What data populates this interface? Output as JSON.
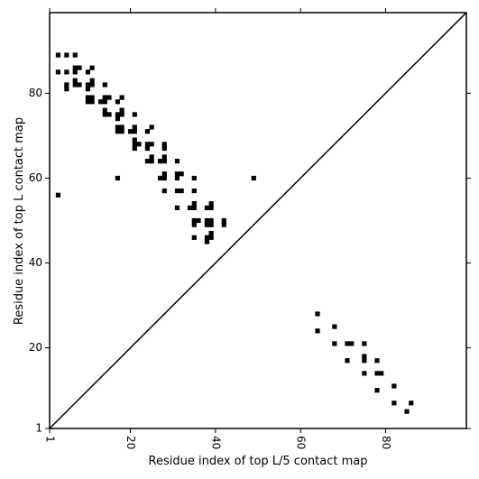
{
  "chart_data": {
    "type": "scatter",
    "title": "",
    "xlabel": "Residue index of top L/5 contact map",
    "ylabel": "Residue index of top L contact map",
    "xlim": [
      1,
      99
    ],
    "ylim": [
      1,
      99
    ],
    "xticks": [
      1,
      20,
      40,
      60,
      80
    ],
    "yticks": [
      1,
      20,
      40,
      60,
      80
    ],
    "x_tick_rotation": -90,
    "grid": false,
    "diagonal_line": true,
    "marker": "square",
    "marker_color": "#000000",
    "series": [
      {
        "points": [
          [
            3,
            89
          ],
          [
            5,
            89
          ],
          [
            7,
            89
          ],
          [
            3,
            85
          ],
          [
            5,
            85
          ],
          [
            7,
            85
          ],
          [
            7,
            86
          ],
          [
            8,
            86
          ],
          [
            10,
            85
          ],
          [
            11,
            86
          ],
          [
            5,
            82
          ],
          [
            5,
            81
          ],
          [
            7,
            83
          ],
          [
            7,
            82
          ],
          [
            8,
            82
          ],
          [
            10,
            82
          ],
          [
            10,
            81
          ],
          [
            11,
            83
          ],
          [
            11,
            82
          ],
          [
            14,
            82
          ],
          [
            10,
            79
          ],
          [
            11,
            79
          ],
          [
            10,
            78
          ],
          [
            11,
            78
          ],
          [
            13,
            78
          ],
          [
            14,
            79
          ],
          [
            15,
            79
          ],
          [
            14,
            78
          ],
          [
            17,
            78
          ],
          [
            18,
            79
          ],
          [
            14,
            76
          ],
          [
            14,
            75
          ],
          [
            15,
            75
          ],
          [
            17,
            75
          ],
          [
            17,
            74
          ],
          [
            18,
            76
          ],
          [
            18,
            75
          ],
          [
            21,
            75
          ],
          [
            17,
            72
          ],
          [
            17,
            71
          ],
          [
            18,
            72
          ],
          [
            18,
            71
          ],
          [
            20,
            71
          ],
          [
            21,
            72
          ],
          [
            21,
            71
          ],
          [
            24,
            71
          ],
          [
            25,
            72
          ],
          [
            21,
            69
          ],
          [
            21,
            68
          ],
          [
            22,
            68
          ],
          [
            21,
            67
          ],
          [
            24,
            68
          ],
          [
            24,
            67
          ],
          [
            25,
            68
          ],
          [
            28,
            68
          ],
          [
            28,
            67
          ],
          [
            24,
            64
          ],
          [
            25,
            65
          ],
          [
            25,
            64
          ],
          [
            27,
            64
          ],
          [
            28,
            65
          ],
          [
            28,
            64
          ],
          [
            31,
            64
          ],
          [
            17,
            60
          ],
          [
            27,
            60
          ],
          [
            28,
            61
          ],
          [
            28,
            60
          ],
          [
            31,
            61
          ],
          [
            31,
            60
          ],
          [
            32,
            61
          ],
          [
            35,
            60
          ],
          [
            49,
            60
          ],
          [
            28,
            57
          ],
          [
            31,
            57
          ],
          [
            32,
            57
          ],
          [
            35,
            57
          ],
          [
            3,
            56
          ],
          [
            31,
            53
          ],
          [
            34,
            53
          ],
          [
            35,
            54
          ],
          [
            35,
            53
          ],
          [
            38,
            53
          ],
          [
            39,
            54
          ],
          [
            39,
            53
          ],
          [
            35,
            50
          ],
          [
            35,
            49
          ],
          [
            36,
            50
          ],
          [
            38,
            50
          ],
          [
            38,
            49
          ],
          [
            39,
            50
          ],
          [
            39,
            49
          ],
          [
            42,
            50
          ],
          [
            42,
            49
          ],
          [
            35,
            46
          ],
          [
            38,
            46
          ],
          [
            38,
            45
          ],
          [
            39,
            47
          ],
          [
            39,
            46
          ],
          [
            64,
            28
          ],
          [
            64,
            24
          ],
          [
            68,
            25
          ],
          [
            68,
            21
          ],
          [
            71,
            21
          ],
          [
            72,
            21
          ],
          [
            75,
            21
          ],
          [
            71,
            17
          ],
          [
            75,
            18
          ],
          [
            75,
            17
          ],
          [
            78,
            17
          ],
          [
            75,
            14
          ],
          [
            78,
            14
          ],
          [
            79,
            14
          ],
          [
            82,
            11
          ],
          [
            78,
            10
          ],
          [
            82,
            7
          ],
          [
            86,
            7
          ],
          [
            85,
            5
          ]
        ]
      }
    ]
  }
}
